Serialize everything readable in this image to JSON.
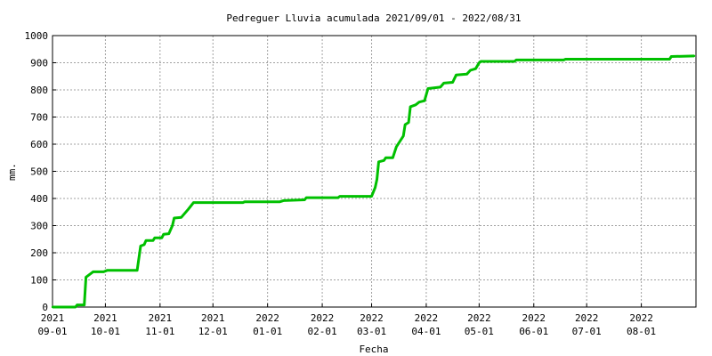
{
  "chart_data": {
    "type": "line",
    "title": "Pedreguer Lluvia acumulada 2021/09/01 - 2022/08/31",
    "xlabel": "Fecha",
    "ylabel": "mm.",
    "ylim": [
      0,
      1000
    ],
    "xlim": [
      "2021-09-01",
      "2022-08-31"
    ],
    "grid": true,
    "legend": "none",
    "yticks": [
      0,
      100,
      200,
      300,
      400,
      500,
      600,
      700,
      800,
      900,
      1000
    ],
    "xticks": [
      {
        "date": "2021-09-01",
        "year": "2021",
        "md": "09-01"
      },
      {
        "date": "2021-10-01",
        "year": "2021",
        "md": "10-01"
      },
      {
        "date": "2021-11-01",
        "year": "2021",
        "md": "11-01"
      },
      {
        "date": "2021-12-01",
        "year": "2021",
        "md": "12-01"
      },
      {
        "date": "2022-01-01",
        "year": "2022",
        "md": "01-01"
      },
      {
        "date": "2022-02-01",
        "year": "2022",
        "md": "02-01"
      },
      {
        "date": "2022-03-01",
        "year": "2022",
        "md": "03-01"
      },
      {
        "date": "2022-04-01",
        "year": "2022",
        "md": "04-01"
      },
      {
        "date": "2022-05-01",
        "year": "2022",
        "md": "05-01"
      },
      {
        "date": "2022-06-01",
        "year": "2022",
        "md": "06-01"
      },
      {
        "date": "2022-07-01",
        "year": "2022",
        "md": "07-01"
      },
      {
        "date": "2022-08-01",
        "year": "2022",
        "md": "08-01"
      }
    ],
    "series": [
      {
        "color": "#00c000",
        "points": [
          [
            "2021-09-01",
            0
          ],
          [
            "2021-09-14",
            0
          ],
          [
            "2021-09-15",
            8
          ],
          [
            "2021-09-19",
            8
          ],
          [
            "2021-09-20",
            110
          ],
          [
            "2021-09-22",
            120
          ],
          [
            "2021-09-24",
            130
          ],
          [
            "2021-09-30",
            130
          ],
          [
            "2021-10-02",
            135
          ],
          [
            "2021-10-19",
            135
          ],
          [
            "2021-10-21",
            225
          ],
          [
            "2021-10-23",
            230
          ],
          [
            "2021-10-24",
            245
          ],
          [
            "2021-10-28",
            245
          ],
          [
            "2021-10-29",
            255
          ],
          [
            "2021-11-02",
            255
          ],
          [
            "2021-11-03",
            268
          ],
          [
            "2021-11-06",
            270
          ],
          [
            "2021-11-08",
            300
          ],
          [
            "2021-11-09",
            328
          ],
          [
            "2021-11-13",
            330
          ],
          [
            "2021-11-17",
            360
          ],
          [
            "2021-11-20",
            385
          ],
          [
            "2021-12-18",
            385
          ],
          [
            "2021-12-19",
            388
          ],
          [
            "2022-01-08",
            388
          ],
          [
            "2022-01-10",
            392
          ],
          [
            "2022-01-22",
            395
          ],
          [
            "2022-01-23",
            403
          ],
          [
            "2022-02-10",
            403
          ],
          [
            "2022-02-11",
            408
          ],
          [
            "2022-03-01",
            408
          ],
          [
            "2022-03-03",
            440
          ],
          [
            "2022-03-04",
            470
          ],
          [
            "2022-03-05",
            535
          ],
          [
            "2022-03-08",
            540
          ],
          [
            "2022-03-09",
            550
          ],
          [
            "2022-03-13",
            550
          ],
          [
            "2022-03-15",
            590
          ],
          [
            "2022-03-17",
            610
          ],
          [
            "2022-03-19",
            630
          ],
          [
            "2022-03-20",
            672
          ],
          [
            "2022-03-22",
            680
          ],
          [
            "2022-03-23",
            738
          ],
          [
            "2022-03-26",
            745
          ],
          [
            "2022-03-28",
            755
          ],
          [
            "2022-03-31",
            760
          ],
          [
            "2022-04-02",
            805
          ],
          [
            "2022-04-09",
            810
          ],
          [
            "2022-04-11",
            825
          ],
          [
            "2022-04-16",
            828
          ],
          [
            "2022-04-18",
            855
          ],
          [
            "2022-04-24",
            858
          ],
          [
            "2022-04-26",
            872
          ],
          [
            "2022-04-29",
            878
          ],
          [
            "2022-05-01",
            900
          ],
          [
            "2022-05-02",
            905
          ],
          [
            "2022-05-21",
            905
          ],
          [
            "2022-05-22",
            910
          ],
          [
            "2022-06-18",
            910
          ],
          [
            "2022-06-19",
            913
          ],
          [
            "2022-08-17",
            913
          ],
          [
            "2022-08-18",
            923
          ],
          [
            "2022-08-31",
            925
          ]
        ]
      }
    ]
  }
}
